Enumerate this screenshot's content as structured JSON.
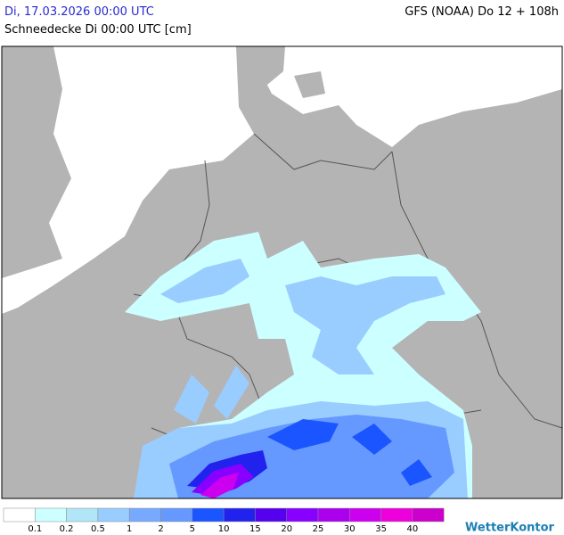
{
  "header": {
    "date": "Di, 17.03.2026 00:00 UTC",
    "model": "GFS (NOAA) Do 12 + 108h",
    "subtitle": "Schneedecke Di 00:00 UTC [cm]"
  },
  "legend": {
    "labels": [
      0.1,
      0.2,
      0.5,
      1,
      2,
      5,
      10,
      15,
      20,
      25,
      30,
      35,
      40
    ],
    "colors": [
      "#ffffff",
      "#ccffff",
      "#b0e6f8",
      "#99ccff",
      "#77aaff",
      "#6699ff",
      "#1a55ff",
      "#2222ee",
      "#5500ee",
      "#8800ff",
      "#aa00ee",
      "#cc00ee",
      "#ee00dd",
      "#cc00cc"
    ]
  },
  "logo": "WetterKontor"
}
